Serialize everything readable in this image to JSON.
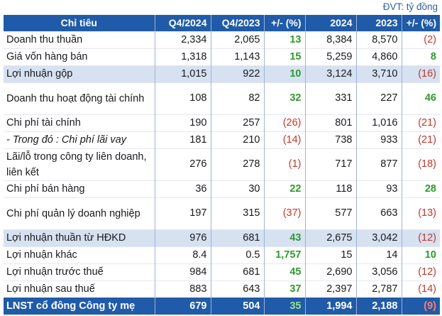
{
  "unit_note": "ĐVT: tỷ đồng",
  "columns": [
    "Chỉ tiêu",
    "Q4/2024",
    "Q4/2023",
    "+/- (%)",
    "2024",
    "2023",
    "+/- (%)"
  ],
  "rows": [
    {
      "label": "Doanh thu thuần",
      "q4_2024": "2,334",
      "q4_2023": "2,065",
      "q_change": "13",
      "y2024": "8,384",
      "y2023": "8,570",
      "y_change": "(2)"
    },
    {
      "label": "Giá vốn hàng bán",
      "q4_2024": "1,318",
      "q4_2023": "1,143",
      "q_change": "15",
      "y2024": "5,259",
      "y2023": "4,860",
      "y_change": "8"
    },
    {
      "label": "Lợi nhuận gộp",
      "q4_2024": "1,015",
      "q4_2023": "922",
      "q_change": "10",
      "y2024": "3,124",
      "y2023": "3,710",
      "y_change": "(16)"
    },
    {
      "label": "Doanh thu hoạt động tài chính",
      "q4_2024": "108",
      "q4_2023": "82",
      "q_change": "32",
      "y2024": "331",
      "y2023": "227",
      "y_change": "46"
    },
    {
      "label": "Chi phí tài chính",
      "q4_2024": "190",
      "q4_2023": "257",
      "q_change": "(26)",
      "y2024": "801",
      "y2023": "1,016",
      "y_change": "(21)"
    },
    {
      "label": "- Trong đó : Chi phí lãi vay",
      "q4_2024": "181",
      "q4_2023": "210",
      "q_change": "(14)",
      "y2024": "738",
      "y2023": "933",
      "y_change": "(21)"
    },
    {
      "label": "Lãi/lỗ trong công ty liên doanh, liên kết",
      "q4_2024": "276",
      "q4_2023": "278",
      "q_change": "(1)",
      "y2024": "717",
      "y2023": "877",
      "y_change": "(18)"
    },
    {
      "label": "Chi phí bán hàng",
      "q4_2024": "36",
      "q4_2023": "30",
      "q_change": "22",
      "y2024": "118",
      "y2023": "93",
      "y_change": "28"
    },
    {
      "label": "Chi phí quản lý doanh nghiệp",
      "q4_2024": "197",
      "q4_2023": "315",
      "q_change": "(37)",
      "y2024": "577",
      "y2023": "663",
      "y_change": "(13)"
    },
    {
      "label": "Lợi nhuận thuần từ HĐKD",
      "q4_2024": "976",
      "q4_2023": "681",
      "q_change": "43",
      "y2024": "2,675",
      "y2023": "3,042",
      "y_change": "(12)"
    },
    {
      "label": "Lợi nhuận khác",
      "q4_2024": "8.4",
      "q4_2023": "0.5",
      "q_change": "1,757",
      "y2024": "15",
      "y2023": "14",
      "y_change": "10"
    },
    {
      "label": "Lợi nhuận trước thuế",
      "q4_2024": "984",
      "q4_2023": "681",
      "q_change": "45",
      "y2024": "2,690",
      "y2023": "3,056",
      "y_change": "(12)"
    },
    {
      "label": "Lợi nhuận sau thuế",
      "q4_2024": "883",
      "q4_2023": "643",
      "q_change": "37",
      "y2024": "2,397",
      "y2023": "2,787",
      "y_change": "(14)"
    },
    {
      "label": "LNST cổ đông Công ty mẹ",
      "q4_2024": "679",
      "q4_2023": "504",
      "q_change": "35",
      "y2024": "1,994",
      "y2023": "2,188",
      "y_change": "(9)"
    }
  ],
  "colors": {
    "header_bg": "#1f5ba8",
    "highlight_bg": "#d6e1f1",
    "positive": "#2e9a2e",
    "negative": "#c0392b",
    "unit_note": "#2d5fa8"
  }
}
